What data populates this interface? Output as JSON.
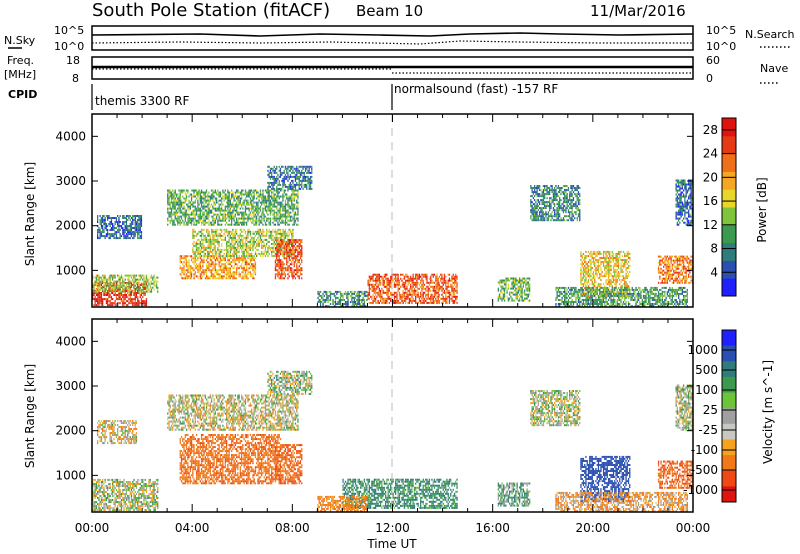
{
  "header": {
    "station": "South Pole Station (fitACF)",
    "beam": "Beam 10",
    "date": "11/Mar/2016"
  },
  "top_panels": {
    "nsky_label": "N.Sky",
    "nsky_ticks": [
      "10^5",
      "10^0"
    ],
    "nsearch_label": "N.Search",
    "nsearch_ticks": [
      "10^5",
      "10^0"
    ],
    "freq_label": "Freq.",
    "freq_unit": "[MHz]",
    "freq_ticks": [
      "18",
      "8"
    ],
    "nave_label": "Nave",
    "nave_ticks": [
      "60",
      "0"
    ],
    "cpid_label": "CPID",
    "cpid_segments": [
      {
        "start": "00:00",
        "label": "themis 3300 RF"
      },
      {
        "start": "12:00",
        "label": "normalsound (fast) -157 RF"
      }
    ]
  },
  "colors": {
    "power_scale": [
      "#2020ff",
      "#2a4fb0",
      "#2f7d7a",
      "#3b9a4d",
      "#7fc43a",
      "#e8d72a",
      "#f5a623",
      "#ef6f1a",
      "#e53a16",
      "#e0140f"
    ],
    "velocity_scale": [
      "#e0140f",
      "#ef4a14",
      "#f07a1a",
      "#f5a21f",
      "#c8c8c0",
      "#a0a0a0",
      "#6cc43a",
      "#3b9a4d",
      "#2f7d7a",
      "#2a4fb0",
      "#2020ff"
    ]
  },
  "chart_data": [
    {
      "type": "heatmap",
      "title": "",
      "xlabel": "",
      "ylabel": "Slant Range [km]",
      "xlim": [
        "00:00",
        "00:00"
      ],
      "ylim": [
        180,
        4500
      ],
      "y_ticks": [
        "1000",
        "2000",
        "3000",
        "4000"
      ],
      "colorbar": {
        "label": "Power [dB]",
        "ticks": [
          "4",
          "8",
          "12",
          "16",
          "20",
          "24",
          "28"
        ],
        "range": [
          0,
          30
        ]
      },
      "marker_time": "12:00",
      "regions": [
        {
          "t0": 0.0,
          "t1": 2.2,
          "r0": 200,
          "r1": 700,
          "value": 27
        },
        {
          "t0": 0.0,
          "t1": 2.6,
          "r0": 500,
          "r1": 900,
          "value": 14
        },
        {
          "t0": 0.2,
          "t1": 2.0,
          "r0": 1700,
          "r1": 2200,
          "value": 6
        },
        {
          "t0": 3.5,
          "t1": 6.5,
          "r0": 800,
          "r1": 1300,
          "value": 20
        },
        {
          "t0": 4.0,
          "t1": 8.0,
          "r0": 1300,
          "r1": 1900,
          "value": 15
        },
        {
          "t0": 3.0,
          "t1": 8.2,
          "r0": 2000,
          "r1": 2800,
          "value": 11
        },
        {
          "t0": 7.3,
          "t1": 8.4,
          "r0": 800,
          "r1": 1700,
          "value": 25
        },
        {
          "t0": 7.0,
          "t1": 8.8,
          "r0": 2800,
          "r1": 3300,
          "value": 7
        },
        {
          "t0": 11.0,
          "t1": 14.6,
          "r0": 250,
          "r1": 900,
          "value": 24
        },
        {
          "t0": 9.0,
          "t1": 11.0,
          "r0": 180,
          "r1": 500,
          "value": 9
        },
        {
          "t0": 16.2,
          "t1": 17.5,
          "r0": 300,
          "r1": 800,
          "value": 12
        },
        {
          "t0": 17.5,
          "t1": 19.5,
          "r0": 2100,
          "r1": 2900,
          "value": 8
        },
        {
          "t0": 19.5,
          "t1": 21.5,
          "r0": 400,
          "r1": 1400,
          "value": 18
        },
        {
          "t0": 18.5,
          "t1": 23.8,
          "r0": 180,
          "r1": 600,
          "value": 10
        },
        {
          "t0": 22.6,
          "t1": 24.0,
          "r0": 700,
          "r1": 1300,
          "value": 22
        },
        {
          "t0": 23.3,
          "t1": 24.0,
          "r0": 2000,
          "r1": 3000,
          "value": 6
        }
      ]
    },
    {
      "type": "heatmap",
      "title": "",
      "xlabel": "Time UT",
      "ylabel": "Slant Range [km]",
      "x_ticks": [
        "00:00",
        "04:00",
        "08:00",
        "12:00",
        "16:00",
        "20:00",
        "00:00"
      ],
      "ylim": [
        180,
        4500
      ],
      "y_ticks": [
        "1000",
        "2000",
        "3000",
        "4000"
      ],
      "colorbar": {
        "label": "Velocity [m s^-1]",
        "ticks": [
          "1000",
          "500",
          "100",
          "25",
          "-25",
          "-100",
          "-500",
          "-1000"
        ]
      },
      "marker_time": "12:00",
      "regions": [
        {
          "t0": 0.0,
          "t1": 2.6,
          "r0": 200,
          "r1": 900,
          "value": 0
        },
        {
          "t0": 0.2,
          "t1": 1.8,
          "r0": 1700,
          "r1": 2200,
          "value": -40
        },
        {
          "t0": 3.5,
          "t1": 7.5,
          "r0": 800,
          "r1": 1900,
          "value": -250
        },
        {
          "t0": 3.0,
          "t1": 8.2,
          "r0": 2000,
          "r1": 2800,
          "value": -20
        },
        {
          "t0": 7.3,
          "t1": 8.4,
          "r0": 800,
          "r1": 1700,
          "value": -300
        },
        {
          "t0": 7.0,
          "t1": 8.8,
          "r0": 2800,
          "r1": 3300,
          "value": 10
        },
        {
          "t0": 10.0,
          "t1": 14.6,
          "r0": 250,
          "r1": 900,
          "value": 120
        },
        {
          "t0": 9.0,
          "t1": 11.0,
          "r0": 180,
          "r1": 500,
          "value": -150
        },
        {
          "t0": 16.2,
          "t1": 17.5,
          "r0": 300,
          "r1": 800,
          "value": 60
        },
        {
          "t0": 17.5,
          "t1": 19.5,
          "r0": 2100,
          "r1": 2900,
          "value": 0
        },
        {
          "t0": 19.5,
          "t1": 21.5,
          "r0": 400,
          "r1": 1400,
          "value": 400
        },
        {
          "t0": 18.5,
          "t1": 23.8,
          "r0": 180,
          "r1": 600,
          "value": -80
        },
        {
          "t0": 22.6,
          "t1": 24.0,
          "r0": 700,
          "r1": 1300,
          "value": -300
        },
        {
          "t0": 23.3,
          "t1": 24.0,
          "r0": 2000,
          "r1": 3000,
          "value": 0
        }
      ]
    }
  ]
}
